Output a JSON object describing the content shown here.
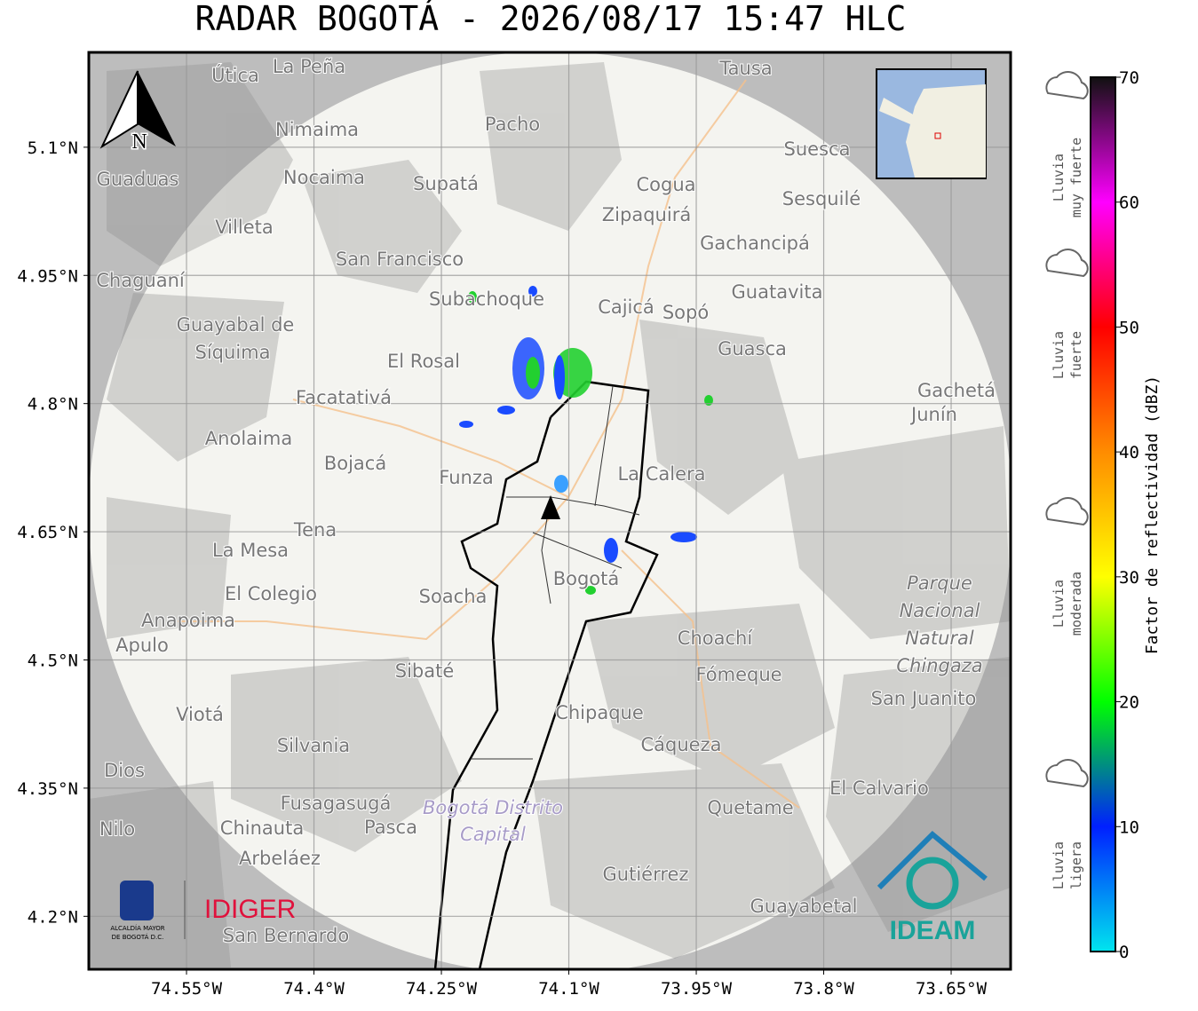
{
  "title": "RADAR BOGOTÁ - 2026/08/17 15:47 HLC",
  "map": {
    "xlim": [
      -74.665,
      -73.58
    ],
    "ylim": [
      4.138,
      5.211
    ],
    "grid": true,
    "xticks": [
      {
        "value": -74.55,
        "label": "74.55°W"
      },
      {
        "value": -74.4,
        "label": "74.4°W"
      },
      {
        "value": -74.25,
        "label": "74.25°W"
      },
      {
        "value": -74.1,
        "label": "74.1°W"
      },
      {
        "value": -73.95,
        "label": "73.95°W"
      },
      {
        "value": -73.8,
        "label": "73.8°W"
      },
      {
        "value": -73.65,
        "label": "73.65°W"
      }
    ],
    "yticks": [
      {
        "value": 5.1,
        "label": "5.1°N"
      },
      {
        "value": 4.95,
        "label": "4.95°N"
      },
      {
        "value": 4.8,
        "label": "4.8°N"
      },
      {
        "value": 4.65,
        "label": "4.65°N"
      },
      {
        "value": 4.5,
        "label": "4.5°N"
      },
      {
        "value": 4.35,
        "label": "4.35°N"
      },
      {
        "value": 4.2,
        "label": "4.2°N"
      }
    ],
    "north": "N",
    "places": [
      "La Peña",
      "Útica",
      "Tausa",
      "Pacho",
      "Nimaima",
      "Guaduas",
      "Nocaima",
      "Supatá",
      "Cogua",
      "Suesca",
      "Zipaquirá",
      "Sesquilé",
      "Villeta",
      "Gachancipá",
      "San Francisco",
      "Chaguaní",
      "Subachoque",
      "Cajicá",
      "Sopó",
      "Guatavita",
      "Guayabal de",
      "Síquima",
      "El Rosal",
      "Guasca",
      "Facatativá",
      "Gachetá",
      "Junín",
      "Anolaima",
      "Bojacá",
      "Funza",
      "La Calera",
      "Tena",
      "La Mesa",
      "Bogotá",
      "Soacha",
      "El Colegio",
      "Anapoima",
      "Apulo",
      "Choachí",
      "Sibaté",
      "Fómeque",
      "Chipaque",
      "Silvania",
      "Cáqueza",
      "Viotá",
      "Fusagasugá",
      "Pasca",
      "Chinauta",
      "Quetame",
      "El Calvario",
      "Arbeláez",
      "Gutiérrez",
      "Guayabetal",
      "San Bernardo",
      "San Juanito",
      "Nilo",
      "Dios"
    ],
    "park": [
      "Parque",
      "Nacional",
      "Natural",
      "Chingaza"
    ],
    "district": [
      "Bogotá Distrito",
      "Capital"
    ],
    "logos": {
      "alcaldia": [
        "ALCALDÍA MAYOR",
        "DE BOGOTÁ D.C."
      ],
      "idiger": "IDIGER",
      "ideam": "IDEAM"
    }
  },
  "colorbar": {
    "label": "Factor de reflectividad (dBZ)",
    "range": [
      0,
      70
    ],
    "ticks": [
      0,
      10,
      20,
      30,
      40,
      50,
      60,
      70
    ],
    "colors": [
      "#00e5ee",
      "#0020ff",
      "#00ff00",
      "#ffff00",
      "#ff8c00",
      "#ff0000",
      "#ff00ff",
      "#111111"
    ],
    "categories": [
      [
        "Lluvia",
        "ligera"
      ],
      [
        "Lluvia",
        "moderada"
      ],
      [
        "Lluvia",
        "fuerte"
      ],
      [
        "Lluvia",
        "muy fuerte"
      ]
    ]
  }
}
